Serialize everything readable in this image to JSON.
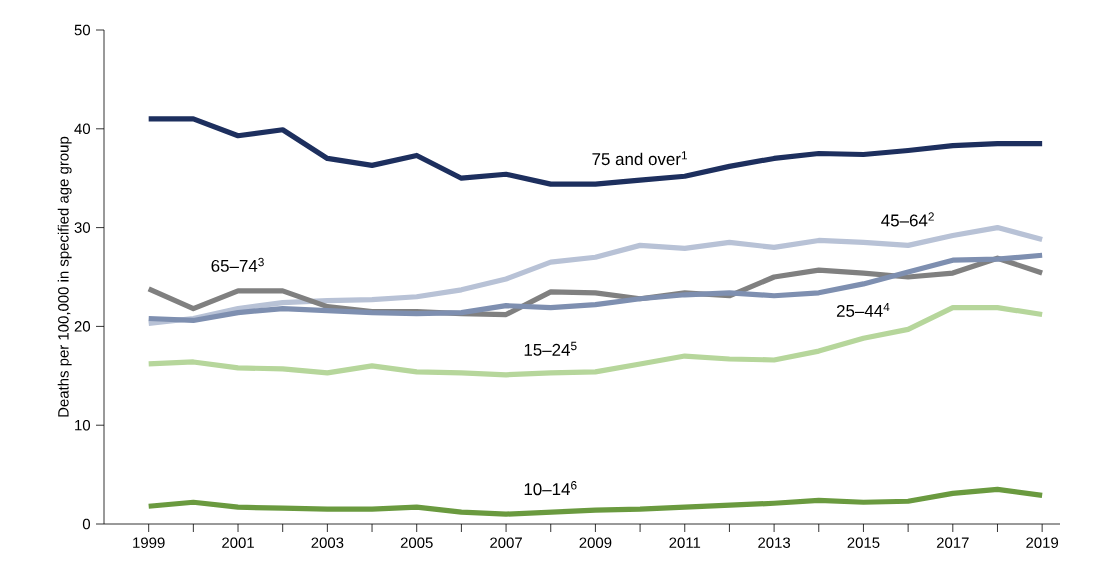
{
  "chart_data": {
    "type": "line",
    "ylabel": "Deaths per 100,000 in specified age group",
    "x": [
      1999,
      2000,
      2001,
      2002,
      2003,
      2004,
      2005,
      2006,
      2007,
      2008,
      2009,
      2010,
      2011,
      2012,
      2013,
      2014,
      2015,
      2016,
      2017,
      2018,
      2019
    ],
    "series": [
      {
        "name": "75 and over$^{1}$",
        "color": "#1d2f5e",
        "values": [
          41,
          41,
          39.3,
          39.9,
          37,
          36.3,
          37.3,
          35,
          35.4,
          34.4,
          34.4,
          34.8,
          35.2,
          36.2,
          37,
          37.5,
          37.4,
          37.8,
          38.3,
          38.5,
          38.5
        ]
      },
      {
        "name": "45–64$^{2}$",
        "color": "#b8c2d6",
        "values": [
          20.3,
          20.8,
          21.8,
          22.4,
          22.6,
          22.7,
          23,
          23.7,
          24.8,
          26.5,
          27,
          28.2,
          27.9,
          28.5,
          28,
          28.7,
          28.5,
          28.2,
          29.2,
          30,
          28.8
        ]
      },
      {
        "name": "65–74$^{3}$",
        "color": "#808080",
        "values": [
          23.8,
          21.8,
          23.6,
          23.6,
          22,
          21.5,
          21.5,
          21.3,
          21.2,
          23.5,
          23.4,
          22.8,
          23.4,
          23.1,
          25,
          25.7,
          25.4,
          25,
          25.4,
          26.9,
          25.4
        ]
      },
      {
        "name": "25–44$^{4}$",
        "color": "#7e8fb0",
        "values": [
          20.8,
          20.6,
          21.4,
          21.8,
          21.6,
          21.4,
          21.3,
          21.4,
          22.1,
          21.9,
          22.2,
          22.8,
          23.2,
          23.4,
          23.1,
          23.4,
          24.3,
          25.5,
          26.7,
          26.8,
          27.2
        ]
      },
      {
        "name": "15–24$^{5}$",
        "color": "#b6d69b",
        "values": [
          16.2,
          16.4,
          15.8,
          15.7,
          15.3,
          16,
          15.4,
          15.3,
          15.1,
          15.3,
          15.4,
          16.2,
          17,
          16.7,
          16.6,
          17.5,
          18.8,
          19.7,
          21.9,
          21.9,
          21.2
        ]
      },
      {
        "name": "10–14$^{6}$",
        "color": "#6a9a3f",
        "values": [
          1.8,
          2.2,
          1.7,
          1.6,
          1.5,
          1.5,
          1.7,
          1.2,
          1.0,
          1.2,
          1.4,
          1.5,
          1.7,
          1.9,
          2.1,
          2.4,
          2.2,
          2.3,
          3.1,
          3.5,
          2.9
        ]
      }
    ],
    "xlim": [
      1998,
      2019.4
    ],
    "ylim": [
      0,
      50
    ],
    "yticks": [
      0,
      10,
      20,
      30,
      40,
      50
    ],
    "xticks": [
      1999,
      {
        "value": 2000,
        "label": null
      },
      2001,
      {
        "value": 2002,
        "label": null
      },
      2003,
      {
        "value": 2004,
        "label": null
      },
      2005,
      {
        "value": 2006,
        "label": null
      },
      2007,
      {
        "value": 2008,
        "label": null
      },
      2009,
      {
        "value": 2010,
        "label": null
      },
      2011,
      {
        "value": 2012,
        "label": null
      },
      2013,
      {
        "value": 2014,
        "label": null
      },
      2015,
      {
        "value": 2016,
        "label": null
      },
      2017,
      {
        "value": 2018,
        "label": null
      },
      2019
    ],
    "line_style": "solid",
    "marker": "none",
    "grid": false,
    "legend": false
  }
}
